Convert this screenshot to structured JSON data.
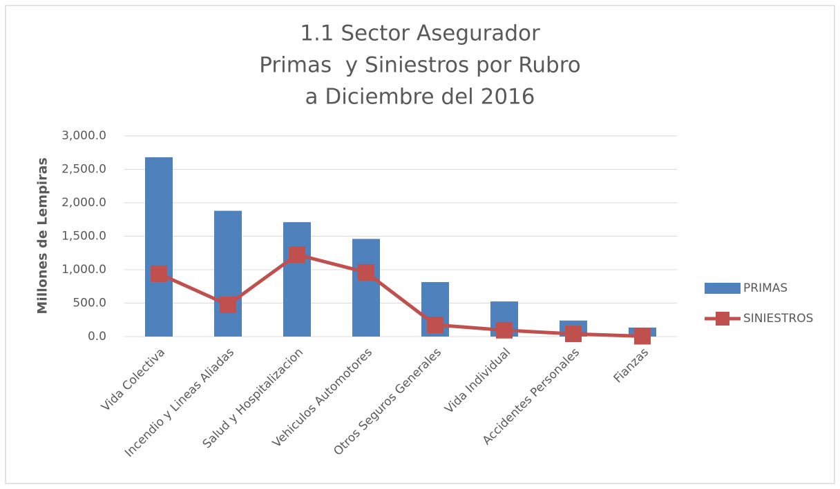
{
  "chart_data": {
    "type": "bar",
    "title": [
      "1.1 Sector Asegurador",
      "Primas  y Siniestros por Rubro",
      "a Diciembre del 2016"
    ],
    "y_label": "Millones de Lempiras",
    "categories": [
      "Vida Colectiva",
      "Incendio y Lineas Aliadas",
      "Salud y Hospitalizacion",
      "Vehiculos Automotores",
      "Otros Seguros Generales",
      "Vida Individual",
      "Accidentes Personales",
      "Fianzas"
    ],
    "series": [
      {
        "name": "PRIMAS",
        "type": "bar",
        "color": "#4f81bd",
        "values": [
          2680,
          1880,
          1710,
          1460,
          815,
          525,
          240,
          135
        ]
      },
      {
        "name": "SINIESTROS",
        "type": "line",
        "color": "#c0504d",
        "values": [
          940,
          475,
          1225,
          960,
          175,
          95,
          40,
          5
        ]
      }
    ],
    "ylim": [
      0,
      3000
    ],
    "yticks": [
      {
        "value": 0,
        "label": "0.0"
      },
      {
        "value": 500,
        "label": "500.0"
      },
      {
        "value": 1000,
        "label": "1,000.0"
      },
      {
        "value": 1500,
        "label": "1,500.0"
      },
      {
        "value": 2000,
        "label": "2,000.0"
      },
      {
        "value": 2500,
        "label": "2,500.0"
      },
      {
        "value": 3000,
        "label": "3,000.0"
      }
    ],
    "grid": true,
    "legend": "right"
  }
}
